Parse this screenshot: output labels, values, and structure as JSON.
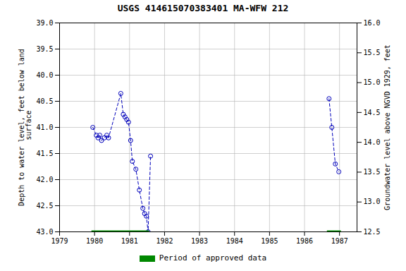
{
  "chart_data": {
    "type": "line",
    "title": "USGS 414615070383401 MA-WFW  212",
    "ylabel": "Depth to water level, feet below land\n surface",
    "y2label": "Groundwater level above NGVD 1929, feet",
    "xlim": [
      1979,
      1987.5
    ],
    "xticks": [
      1979,
      1980,
      1981,
      1982,
      1983,
      1984,
      1985,
      1986,
      1987
    ],
    "ylim": [
      43.0,
      39.0
    ],
    "yticks": [
      {
        "value": 39,
        "label": "39.0"
      },
      39.5,
      {
        "value": 40,
        "label": "40.0"
      },
      40.5,
      {
        "value": 41,
        "label": "41.0"
      },
      41.5,
      {
        "value": 42,
        "label": "42.0"
      },
      42.5,
      {
        "value": 43,
        "label": "43.0"
      }
    ],
    "y2lim": [
      12.5,
      16.0
    ],
    "y2ticks": [
      {
        "value": 16,
        "label": "16.0"
      },
      15.5,
      {
        "value": 15,
        "label": "15.0"
      },
      14.5,
      {
        "value": 14,
        "label": "14.0"
      },
      13.5,
      {
        "value": 13,
        "label": "13.0"
      },
      12.5
    ],
    "x": [
      1979.95,
      1980.05,
      1980.1,
      1980.15,
      1980.2,
      1980.28,
      1980.35,
      1980.4,
      1980.75,
      1980.82,
      1980.87,
      1980.92,
      1980.97,
      1981.03,
      1981.08,
      1981.18,
      1981.28,
      1981.38,
      1981.43,
      1981.48,
      1981.53,
      1981.6,
      null,
      1986.7,
      1986.78,
      1986.88,
      1986.98
    ],
    "values": [
      41.0,
      41.15,
      41.2,
      41.15,
      41.25,
      41.2,
      41.15,
      41.2,
      40.35,
      40.75,
      40.8,
      40.85,
      40.9,
      41.25,
      41.65,
      41.8,
      42.2,
      42.55,
      42.65,
      42.7,
      43.0,
      41.55,
      null,
      40.45,
      41.0,
      41.7,
      41.85
    ],
    "color": "#0000bb",
    "marker": "o",
    "line_style": "dashed",
    "approved_periods": {
      "name": "Period of approved data",
      "color": "#008800",
      "ranges": [
        [
          1979.92,
          1981.57
        ],
        [
          1986.65,
          1987.05
        ]
      ]
    },
    "legend": "bottom",
    "grid": true
  }
}
